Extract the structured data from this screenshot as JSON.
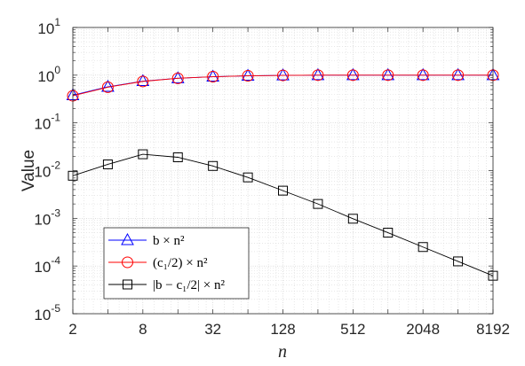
{
  "chart_data": {
    "type": "line",
    "xlabel": "n",
    "ylabel": "Value",
    "x_scale": "log2",
    "y_scale": "log10",
    "xlim": [
      2,
      8192
    ],
    "ylim": [
      1e-05,
      10
    ],
    "grid": true,
    "minor_grid": true,
    "legend_position": "bottom-left",
    "x_ticks": [
      {
        "value": 2,
        "label": "2"
      },
      {
        "value": 8,
        "label": "8"
      },
      {
        "value": 32,
        "label": "32"
      },
      {
        "value": 128,
        "label": "128"
      },
      {
        "value": 512,
        "label": "512"
      },
      {
        "value": 2048,
        "label": "2048"
      },
      {
        "value": 8192,
        "label": "8192"
      }
    ],
    "y_ticks": [
      {
        "value": 1e-05,
        "base": "10",
        "exp": "-5"
      },
      {
        "value": 0.0001,
        "base": "10",
        "exp": "-4"
      },
      {
        "value": 0.001,
        "base": "10",
        "exp": "-3"
      },
      {
        "value": 0.01,
        "base": "10",
        "exp": "-2"
      },
      {
        "value": 0.1,
        "base": "10",
        "exp": "-1"
      },
      {
        "value": 1,
        "base": "10",
        "exp": "0"
      },
      {
        "value": 10,
        "base": "10",
        "exp": "1"
      }
    ],
    "series": [
      {
        "name": "b × n²",
        "color": "#0000ff",
        "marker": "triangle",
        "x": [
          2,
          4,
          8,
          16,
          32,
          64,
          128,
          256,
          512,
          1024,
          2048,
          4096,
          8192
        ],
        "y": [
          0.38,
          0.57,
          0.75,
          0.86,
          0.93,
          0.97,
          0.99,
          1.0,
          1.0,
          1.0,
          1.0,
          1.0,
          1.0
        ]
      },
      {
        "name": "(c₁/2) × n²",
        "color": "#ff0000",
        "marker": "circle",
        "x": [
          2,
          4,
          8,
          16,
          32,
          64,
          128,
          256,
          512,
          1024,
          2048,
          4096,
          8192
        ],
        "y": [
          0.37,
          0.56,
          0.74,
          0.86,
          0.93,
          0.97,
          0.99,
          1.0,
          1.0,
          1.0,
          1.0,
          1.0,
          1.0
        ]
      },
      {
        "name": "|b − c₁/2| × n²",
        "color": "#000000",
        "marker": "square",
        "x": [
          2,
          4,
          8,
          16,
          32,
          64,
          128,
          256,
          512,
          1024,
          2048,
          4096,
          8192
        ],
        "y": [
          0.0078,
          0.0135,
          0.022,
          0.019,
          0.0125,
          0.0072,
          0.0038,
          0.002,
          0.00098,
          0.0005,
          0.00025,
          0.000125,
          6.25e-05
        ]
      }
    ]
  }
}
